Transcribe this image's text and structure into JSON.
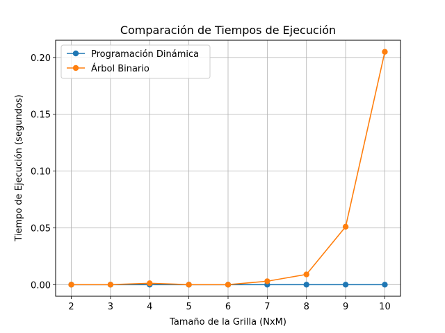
{
  "chart_data": {
    "type": "line",
    "title": "Comparación de Tiempos de Ejecución",
    "xlabel": "Tamaño de la Grilla (NxM)",
    "ylabel": "Tiempo de Ejecución (segundos)",
    "x": [
      2,
      3,
      4,
      5,
      6,
      7,
      8,
      9,
      10
    ],
    "xticks": [
      "2",
      "3",
      "4",
      "5",
      "6",
      "7",
      "8",
      "9",
      "10"
    ],
    "yticks": [
      "0.00",
      "0.05",
      "0.10",
      "0.15",
      "0.20"
    ],
    "xlim": [
      1.6,
      10.4
    ],
    "ylim": [
      -0.0102,
      0.2152
    ],
    "grid": true,
    "legend_position": "top-left",
    "series": [
      {
        "name": "Programación Dinámica",
        "color": "#1f77b4",
        "marker": "circle",
        "values": [
          0.0,
          0.0,
          0.0,
          0.0,
          0.0,
          0.0,
          0.0,
          0.0,
          0.0
        ]
      },
      {
        "name": "Árbol Binario",
        "color": "#ff7f0e",
        "marker": "circle",
        "values": [
          0.0,
          0.0,
          0.0012,
          0.0,
          0.0,
          0.003,
          0.009,
          0.051,
          0.205
        ]
      }
    ]
  }
}
